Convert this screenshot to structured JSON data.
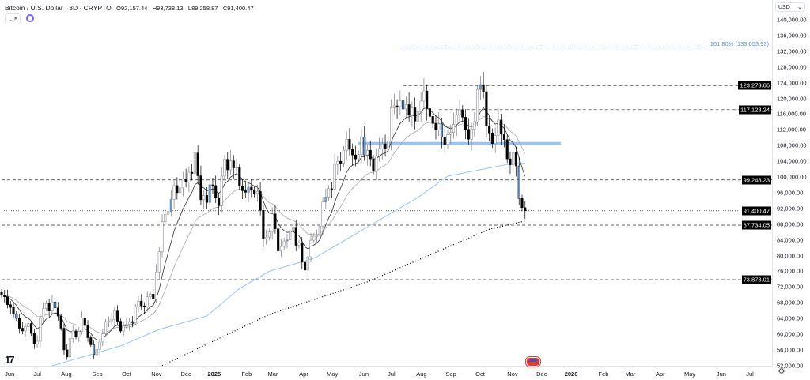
{
  "header": {
    "symbol_title": "Bitcoin / U.S. Dollar · 3D · CRYPTO",
    "open": "O92,157.44",
    "high": "H93,738.13",
    "low": "L89,258.87",
    "close": "C91,400.47",
    "indicators_count": "5",
    "currency": "USD"
  },
  "chart_data": {
    "type": "candlestick",
    "title": "Bitcoin / U.S. Dollar · 3D · CRYPTO",
    "interval": "3D",
    "ylim": [
      52000,
      142000
    ],
    "y_ticks": [
      "140,000.00",
      "136,000.00",
      "132,000.00",
      "128,000.00",
      "124,000.00",
      "120,000.00",
      "116,000.00",
      "112,000.00",
      "108,000.00",
      "104,000.00",
      "100,000.00",
      "96,000.00",
      "92,000.00",
      "88,000.00",
      "84,000.00",
      "80,000.00",
      "76,000.00",
      "72,000.00",
      "68,000.00",
      "64,000.00",
      "60,000.00",
      "56,000.00",
      "52,000.00"
    ],
    "x_ticks": [
      {
        "label": "Jun",
        "index": 2.7
      },
      {
        "label": "Jul",
        "index": 12
      },
      {
        "label": "Aug",
        "index": 21.8
      },
      {
        "label": "Sep",
        "index": 32.2
      },
      {
        "label": "Oct",
        "index": 42
      },
      {
        "label": "Nov",
        "index": 52.1
      },
      {
        "label": "Dec",
        "index": 62
      },
      {
        "label": "2025",
        "index": 71.5,
        "year": true
      },
      {
        "label": "Feb",
        "index": 82.4
      },
      {
        "label": "Mar",
        "index": 91.2
      },
      {
        "label": "Apr",
        "index": 101.6
      },
      {
        "label": "May",
        "index": 111.2
      },
      {
        "label": "Jun",
        "index": 121.8
      },
      {
        "label": "Jul",
        "index": 131.1
      },
      {
        "label": "Aug",
        "index": 141.2
      },
      {
        "label": "Sep",
        "index": 151.1
      },
      {
        "label": "Oct",
        "index": 160.9
      },
      {
        "label": "Nov",
        "index": 171.8
      },
      {
        "label": "Dec",
        "index": 181.6
      },
      {
        "label": "2026",
        "index": 191.5,
        "year": true
      },
      {
        "label": "Feb",
        "index": 202.4
      },
      {
        "label": "Mar",
        "index": 211.4
      },
      {
        "label": "Apr",
        "index": 221.5
      },
      {
        "label": "May",
        "index": 231.4
      },
      {
        "label": "Jun",
        "index": 242
      },
      {
        "label": "Jul",
        "index": 251.6
      }
    ],
    "closes": [
      70000,
      69500,
      67500,
      66800,
      65200,
      64000,
      61500,
      60800,
      61900,
      62700,
      60200,
      57500,
      58200,
      64200,
      66500,
      67800,
      65900,
      68200,
      66700,
      64600,
      61500,
      56000,
      54200,
      58900,
      60800,
      59300,
      60700,
      64100,
      62200,
      59100,
      57300,
      54800,
      56100,
      58000,
      60100,
      63200,
      63400,
      63800,
      65900,
      63300,
      60800,
      62100,
      62500,
      63200,
      62900,
      67000,
      68400,
      67200,
      66900,
      69500,
      70200,
      68900,
      75800,
      81000,
      88600,
      90500,
      91200,
      94300,
      97800,
      96000,
      97200,
      99500,
      98700,
      101200,
      100900,
      106100,
      100300,
      94200,
      95300,
      93500,
      98000,
      97800,
      94700,
      92700,
      100200,
      104500,
      101800,
      104100,
      102300,
      102400,
      97700,
      96500,
      96100,
      97400,
      96600,
      95800,
      96300,
      91500,
      84300,
      84700,
      86000,
      90600,
      86800,
      81200,
      82300,
      83700,
      84000,
      86300,
      87200,
      82600,
      83200,
      78300,
      76300,
      79700,
      83900,
      84900,
      85100,
      87500,
      93600,
      94900,
      97000,
      96900,
      103200,
      104000,
      103500,
      106800,
      109600,
      107000,
      105600,
      104600,
      105700,
      110200,
      105600,
      106800,
      104600,
      101500,
      105400,
      107200,
      108400,
      107100,
      109200,
      117600,
      118100,
      117900,
      119400,
      117300,
      118400,
      115700,
      117600,
      114200,
      116600,
      119300,
      121900,
      117400,
      115400,
      113600,
      112000,
      113500,
      110200,
      108300,
      110800,
      111300,
      113400,
      115800,
      117100,
      115200,
      112100,
      109600,
      112200,
      114000,
      122300,
      123500,
      121700,
      113000,
      111200,
      108500,
      110600,
      114500,
      111000,
      109500,
      104600,
      103100,
      106200,
      102800,
      94500,
      92200,
      91400
    ],
    "moving_averages": {
      "fast_ema_period": 9,
      "slow_ema_period": 21,
      "mid_ma_points": [
        [
          15,
          51500
        ],
        [
          40,
          57000
        ],
        [
          53,
          61200
        ],
        [
          69,
          64600
        ],
        [
          80,
          71600
        ],
        [
          90,
          76000
        ],
        [
          105,
          79300
        ],
        [
          140,
          94800
        ],
        [
          150,
          100200
        ],
        [
          170,
          103200
        ],
        [
          176,
          103500
        ]
      ],
      "long_ma_points": [
        [
          54,
          52000
        ],
        [
          90,
          65000
        ],
        [
          123,
          73300
        ],
        [
          164,
          86700
        ],
        [
          176,
          88800
        ]
      ]
    },
    "levels": [
      {
        "label": "123,273.66",
        "value": 123273.66,
        "style": "dashed",
        "from_index": 135
      },
      {
        "label": "117,123.24",
        "value": 117123.24,
        "style": "dashed",
        "from_index": 147
      },
      {
        "label": "99,248.23",
        "value": 99248.23,
        "style": "dashed",
        "from_index": 0
      },
      {
        "label": "91,400.47",
        "value": 91400.47,
        "style": "dotted",
        "from_index": 0
      },
      {
        "label": "87,734.05",
        "value": 87734.05,
        "style": "dashed",
        "from_index": 0
      },
      {
        "label": "73,878.01",
        "value": 73878.01,
        "style": "dashed",
        "from_index": 0
      }
    ],
    "fib_level": {
      "label": "161.80% (133,053.93)",
      "value": 133053.93,
      "from_index": 134
    },
    "support_zone": {
      "value": 108500,
      "from_index": 120,
      "to_index": 188
    },
    "colors": {
      "up": "#ffffff",
      "up_border": "#787b86",
      "down": "#000000",
      "highlight": "#6a9bd8",
      "fast_ema": "#333333",
      "slow_ema": "#aaaaaa",
      "mid_ma": "#9cc3f5",
      "long_ma": "#000000",
      "fib": "#5b8def",
      "zone": "#9cc3f5"
    }
  }
}
